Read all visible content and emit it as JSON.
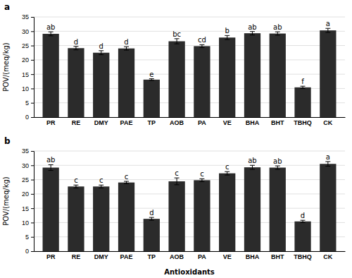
{
  "chart_data": [
    {
      "type": "bar",
      "title": "a",
      "categories": [
        "PR",
        "RE",
        "DMY",
        "PAE",
        "TP",
        "AOB",
        "PA",
        "VE",
        "BHA",
        "BHT",
        "TBHQ",
        "CK"
      ],
      "values": [
        29.1,
        24.1,
        22.5,
        24.0,
        13.1,
        26.5,
        24.8,
        27.8,
        29.3,
        29.2,
        10.4,
        30.3
      ],
      "errors": [
        0.7,
        0.6,
        0.7,
        0.6,
        0.3,
        0.9,
        0.5,
        0.7,
        0.6,
        0.6,
        0.4,
        0.7
      ],
      "annotations": [
        "ab",
        "d",
        "d",
        "d",
        "e",
        "bc",
        "cd",
        "b",
        "ab",
        "ab",
        "f",
        "a"
      ],
      "color": "#2b2b2b",
      "y_label": "POV/(meq/kg)",
      "ylim": [
        0,
        35
      ],
      "yticks": [
        0,
        5,
        10,
        15,
        20,
        25,
        30,
        35
      ],
      "grid": true
    },
    {
      "type": "bar",
      "title": "b",
      "categories": [
        "PR",
        "RE",
        "DMY",
        "PAE",
        "TP",
        "AOB",
        "PA",
        "VE",
        "BHA",
        "BHT",
        "TBHQ",
        "CK"
      ],
      "values": [
        29.2,
        22.6,
        22.6,
        24.0,
        11.3,
        24.4,
        24.8,
        27.2,
        29.3,
        29.2,
        10.4,
        30.5
      ],
      "errors": [
        1.0,
        0.5,
        0.5,
        0.4,
        0.5,
        1.2,
        0.5,
        0.6,
        0.7,
        0.6,
        0.4,
        0.8
      ],
      "annotations": [
        "ab",
        "c",
        "c",
        "c",
        "d",
        "c",
        "c",
        "c",
        "ab",
        "ab",
        "d",
        "a"
      ],
      "color": "#2b2b2b",
      "x_label": "Antioxidants",
      "y_label": "POV/(meq/kg)",
      "ylim": [
        0,
        35
      ],
      "yticks": [
        0,
        5,
        10,
        15,
        20,
        25,
        30,
        35
      ],
      "grid": true
    }
  ]
}
